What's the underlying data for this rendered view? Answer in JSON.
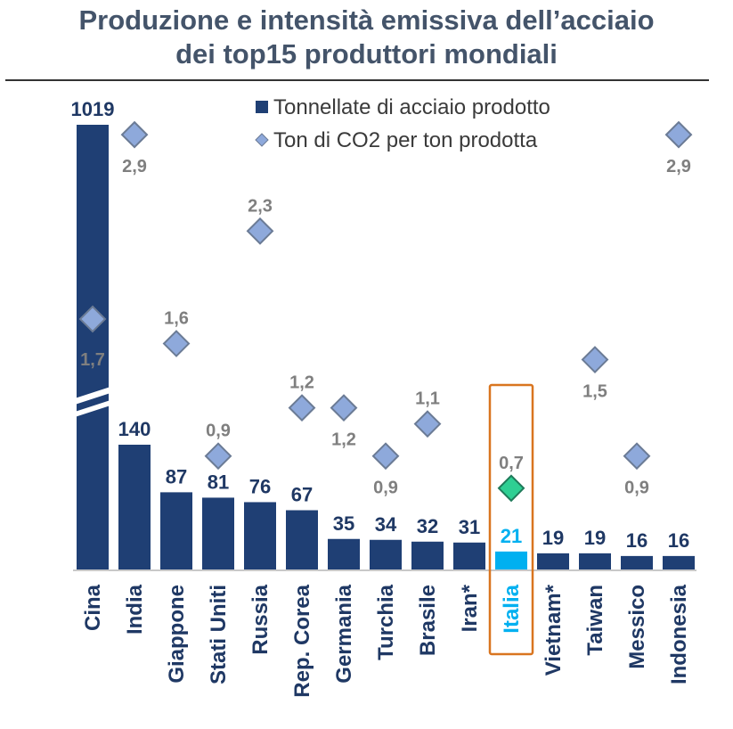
{
  "title": {
    "line1": "Produzione e intensità emissiva dell’acciaio",
    "line2": "dei top15 produttori mondiali"
  },
  "colors": {
    "bar": "#1f3f74",
    "diamond_fill": "#8ea9db",
    "diamond_stroke": "#6b7b95",
    "highlight": "#00b0f0",
    "highlight_diamond": "#2ecf93",
    "highlight_box": "#d9751f",
    "label_dark": "#1f3864",
    "label_grey": "#7f7f7f"
  },
  "chart_data": {
    "type": "bar",
    "categories": [
      "Cina",
      "India",
      "Giappone",
      "Stati Uniti",
      "Russia",
      "Rep. Corea",
      "Germania",
      "Turchia",
      "Brasile",
      "Iran*",
      "Italia",
      "Vietnam*",
      "Taiwan",
      "Messico",
      "Indonesia"
    ],
    "highlight": "Italia",
    "axis_break": "Cina",
    "series": [
      {
        "name": "Tonnellate di acciaio prodotto",
        "type": "bar",
        "values": [
          1019,
          140,
          87,
          81,
          76,
          67,
          35,
          34,
          32,
          31,
          21,
          19,
          19,
          16,
          16
        ],
        "labels": [
          "1019",
          "140",
          "87",
          "81",
          "76",
          "67",
          "35",
          "34",
          "32",
          "31",
          "21",
          "19",
          "19",
          "16",
          "16"
        ]
      },
      {
        "name": "Ton di CO2 per ton prodotta",
        "type": "scatter",
        "marker": "diamond",
        "values": [
          1.7,
          2.9,
          1.6,
          0.9,
          2.3,
          1.2,
          1.2,
          0.9,
          1.1,
          null,
          0.7,
          null,
          1.5,
          0.9,
          2.9
        ],
        "labels": [
          "1,7",
          "2,9",
          "1,6",
          "0,9",
          "2,3",
          "1,2",
          "1,2",
          "0,9",
          "1,1",
          null,
          "0,7",
          null,
          "1,5",
          "0,9",
          "2,9"
        ]
      }
    ],
    "legend": "top-right",
    "grid": false
  }
}
